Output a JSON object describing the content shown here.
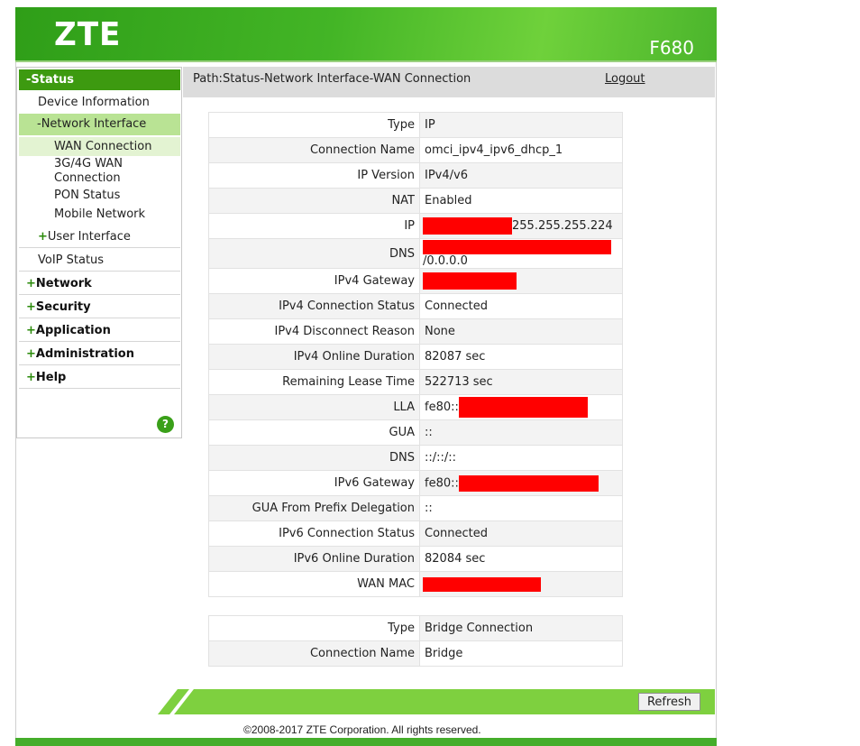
{
  "header": {
    "brand": "ZTE",
    "model": "F680"
  },
  "sidebar": {
    "status": "-Status",
    "device_information": "Device Information",
    "network_interface": "-Network Interface",
    "wan_connection": "WAN Connection",
    "wan_3g4g_line1": "3G/4G WAN",
    "wan_3g4g_line2": "Connection",
    "pon_status": "PON Status",
    "mobile_network": "Mobile Network",
    "user_interface": "User Interface",
    "voip_status": "VoIP Status",
    "network": "Network",
    "security": "Security",
    "application": "Application",
    "administration": "Administration",
    "help": "Help",
    "plus": "+",
    "help_icon": "?"
  },
  "pathbar": {
    "path": "Path:Status-Network Interface-WAN Connection",
    "logout": "Logout"
  },
  "wan1": {
    "type_k": "Type",
    "type_v": "IP",
    "conn_name_k": "Connection Name",
    "conn_name_v": "omci_ipv4_ipv6_dhcp_1",
    "ip_version_k": "IP Version",
    "ip_version_v": "IPv4/v6",
    "nat_k": "NAT",
    "nat_v": "Enabled",
    "ip_k": "IP",
    "ip_v_suffix": "255.255.255.224",
    "dns_k": "DNS",
    "dns_v_suffix": "/0.0.0.0",
    "ipv4_gw_k": "IPv4 Gateway",
    "ipv4_status_k": "IPv4 Connection Status",
    "ipv4_status_v": "Connected",
    "ipv4_disc_k": "IPv4 Disconnect Reason",
    "ipv4_disc_v": "None",
    "ipv4_online_k": "IPv4 Online Duration",
    "ipv4_online_v": "82087 sec",
    "lease_k": "Remaining Lease Time",
    "lease_v": "522713 sec",
    "lla_k": "LLA",
    "lla_v_prefix": "fe80::",
    "gua_k": "GUA",
    "gua_v": "::",
    "dns6_k": "DNS",
    "dns6_v": "::/::/::",
    "ipv6_gw_k": "IPv6 Gateway",
    "ipv6_gw_v_prefix": "fe80::",
    "gua_pd_k": "GUA From Prefix Delegation",
    "gua_pd_v": "::",
    "ipv6_status_k": "IPv6 Connection Status",
    "ipv6_status_v": "Connected",
    "ipv6_online_k": "IPv6 Online Duration",
    "ipv6_online_v": "82084 sec",
    "wan_mac_k": "WAN MAC"
  },
  "wan2": {
    "type_k": "Type",
    "type_v": "Bridge Connection",
    "conn_name_k": "Connection Name",
    "conn_name_v": "Bridge"
  },
  "footer": {
    "refresh": "Refresh",
    "copyright": "©2008-2017 ZTE Corporation. All rights reserved."
  },
  "colors": {
    "brand_green": "#3d9a10",
    "redaction": "#ff0000"
  }
}
